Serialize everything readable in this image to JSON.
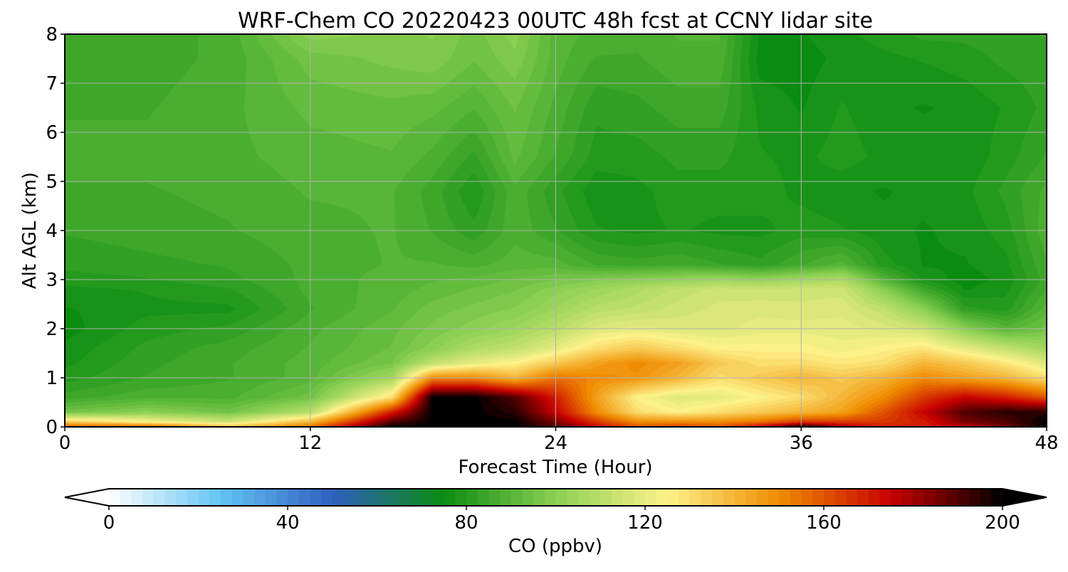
{
  "chart_data": {
    "type": "heatmap",
    "title": "WRF-Chem CO  20220423 00UTC 48h fcst at CCNY lidar site",
    "xlabel": "Forecast Time (Hour)",
    "ylabel": "Alt AGL (km)",
    "xlim": [
      0,
      48
    ],
    "ylim": [
      0,
      8
    ],
    "xticks": [
      0,
      12,
      24,
      36,
      48
    ],
    "yticks": [
      0,
      1,
      2,
      3,
      4,
      5,
      6,
      7,
      8
    ],
    "grid": true,
    "x": [
      0,
      4,
      8,
      12,
      16,
      18,
      20,
      22,
      24,
      26,
      28,
      30,
      32,
      34,
      36,
      38,
      40,
      42,
      44,
      46,
      48
    ],
    "y": [
      0,
      0.1,
      0.3,
      0.6,
      1.0,
      1.3,
      1.6,
      2.0,
      2.4,
      2.8,
      3.0,
      3.3,
      4.0,
      4.8,
      5.5,
      6.5,
      7.5,
      8.0
    ],
    "z": [
      [
        160,
        160,
        140,
        155,
        200,
        200,
        200,
        200,
        190,
        175,
        160,
        165,
        160,
        175,
        200,
        180,
        170,
        170,
        175,
        185,
        200
      ],
      [
        135,
        125,
        115,
        140,
        190,
        200,
        200,
        200,
        185,
        165,
        150,
        150,
        150,
        155,
        165,
        165,
        165,
        170,
        185,
        190,
        200
      ],
      [
        95,
        100,
        95,
        110,
        170,
        200,
        200,
        195,
        175,
        150,
        130,
        125,
        130,
        135,
        140,
        145,
        160,
        175,
        190,
        195,
        195
      ],
      [
        85,
        88,
        88,
        95,
        130,
        200,
        200,
        190,
        170,
        145,
        125,
        118,
        120,
        125,
        130,
        140,
        150,
        165,
        175,
        170,
        160
      ],
      [
        80,
        84,
        86,
        90,
        105,
        150,
        150,
        140,
        155,
        150,
        148,
        140,
        130,
        135,
        140,
        135,
        140,
        150,
        145,
        140,
        130
      ],
      [
        78,
        83,
        86,
        90,
        96,
        112,
        120,
        125,
        135,
        145,
        150,
        145,
        135,
        130,
        130,
        128,
        130,
        140,
        135,
        128,
        118
      ],
      [
        77,
        82,
        85,
        89,
        94,
        100,
        108,
        112,
        120,
        130,
        135,
        130,
        125,
        125,
        125,
        122,
        125,
        128,
        120,
        112,
        105
      ],
      [
        75,
        80,
        82,
        88,
        93,
        97,
        100,
        104,
        110,
        118,
        120,
        118,
        118,
        120,
        120,
        120,
        118,
        115,
        100,
        90,
        95
      ],
      [
        76,
        78,
        78,
        86,
        91,
        95,
        97,
        99,
        104,
        110,
        112,
        115,
        117,
        118,
        117,
        118,
        112,
        100,
        82,
        80,
        90
      ],
      [
        78,
        79,
        81,
        87,
        90,
        92,
        94,
        96,
        100,
        104,
        108,
        112,
        115,
        114,
        115,
        115,
        100,
        85,
        76,
        78,
        86
      ],
      [
        80,
        81,
        83,
        87,
        90,
        91,
        92,
        94,
        96,
        98,
        100,
        102,
        104,
        102,
        105,
        108,
        90,
        78,
        75,
        77,
        85
      ],
      [
        82,
        83,
        84,
        87,
        89,
        89,
        88,
        90,
        90,
        86,
        85,
        86,
        84,
        82,
        86,
        90,
        80,
        76,
        76,
        78,
        86
      ],
      [
        84,
        85,
        86,
        88,
        89,
        86,
        82,
        88,
        84,
        79,
        78,
        79,
        78,
        78,
        80,
        79,
        77,
        76,
        77,
        80,
        88
      ],
      [
        86,
        86,
        87,
        89,
        89,
        85,
        79,
        88,
        82,
        77,
        78,
        80,
        80,
        80,
        78,
        77,
        76,
        77,
        78,
        82,
        87
      ],
      [
        87,
        87,
        88,
        90,
        91,
        88,
        83,
        92,
        86,
        80,
        80,
        82,
        82,
        79,
        78,
        80,
        78,
        78,
        77,
        80,
        84
      ],
      [
        86,
        86,
        88,
        92,
        93,
        92,
        89,
        94,
        88,
        82,
        83,
        85,
        85,
        78,
        76,
        79,
        77,
        76,
        77,
        79,
        82
      ],
      [
        84,
        85,
        87,
        95,
        97,
        98,
        94,
        98,
        90,
        86,
        86,
        88,
        88,
        75,
        75,
        77,
        78,
        79,
        80,
        82,
        83
      ],
      [
        84,
        85,
        87,
        100,
        98,
        99,
        95,
        100,
        90,
        88,
        87,
        89,
        89,
        76,
        76,
        78,
        80,
        82,
        82,
        83,
        84
      ]
    ],
    "colorbar": {
      "label": "CO  (ppbv)",
      "min": 0,
      "max": 200,
      "ticks": [
        0,
        40,
        80,
        120,
        160,
        200
      ],
      "extend": "both",
      "levels": 81,
      "colors": [
        "#ffffff",
        "#63c4f4",
        "#2f5fbf",
        "#0a8c10",
        "#8bd052",
        "#fdf28a",
        "#f08c00",
        "#c80000",
        "#000000"
      ]
    }
  }
}
